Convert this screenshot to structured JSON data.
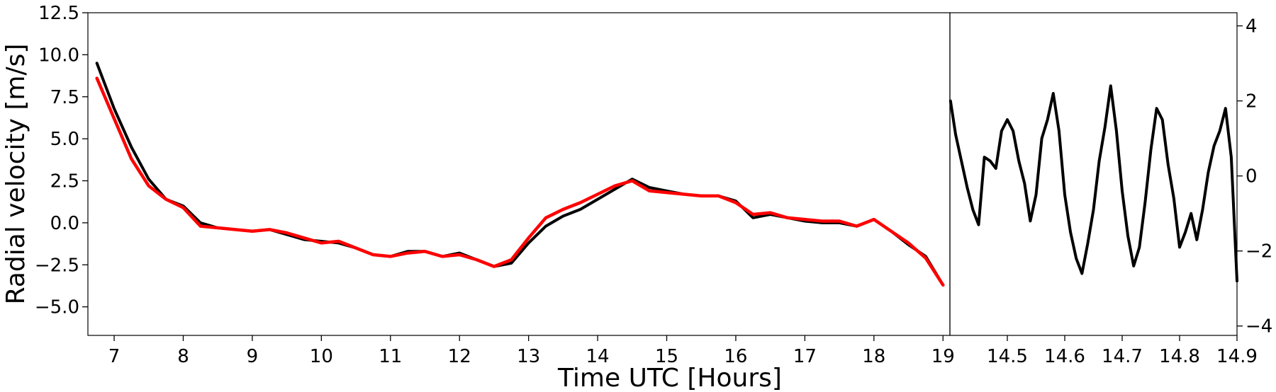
{
  "chart_data": [
    {
      "type": "line",
      "xlabel": "Time UTC [Hours]",
      "ylabel": "Radial velocity [m/s]",
      "xlim": [
        6.62,
        19.1
      ],
      "ylim": [
        -6.7,
        12.5
      ],
      "xticks": [
        "7",
        "8",
        "9",
        "10",
        "11",
        "12",
        "13",
        "14",
        "15",
        "16",
        "17",
        "18",
        "19"
      ],
      "yticks": [
        "−5.0",
        "−2.5",
        "0.0",
        "2.5",
        "5.0",
        "7.5",
        "10.0",
        "12.5"
      ],
      "line_color": "#000000",
      "smooth_color": "#ff0000",
      "series": [
        {
          "x": [
            6.75,
            7.0,
            7.25,
            7.5,
            7.75,
            8.0,
            8.25,
            8.5,
            8.75,
            9.0,
            9.25,
            9.5,
            9.75,
            10.0,
            10.25,
            10.5,
            10.75,
            11.0,
            11.25,
            11.5,
            11.75,
            12.0,
            12.25,
            12.5,
            12.75,
            13.0,
            13.25,
            13.5,
            13.75,
            14.0,
            14.25,
            14.5,
            14.75,
            15.0,
            15.25,
            15.5,
            15.75,
            16.0,
            16.25,
            16.5,
            16.75,
            17.0,
            17.25,
            17.5,
            17.75,
            18.0,
            18.25,
            18.5,
            18.75,
            19.0
          ],
          "y": [
            9.5,
            6.8,
            4.5,
            2.6,
            1.4,
            1.0,
            0.0,
            -0.3,
            -0.4,
            -0.5,
            -0.4,
            -0.7,
            -1.0,
            -1.1,
            -1.2,
            -1.5,
            -1.9,
            -2.0,
            -1.7,
            -1.7,
            -2.0,
            -1.8,
            -2.2,
            -2.6,
            -2.4,
            -1.2,
            -0.2,
            0.4,
            0.8,
            1.4,
            2.0,
            2.6,
            2.1,
            1.9,
            1.7,
            1.6,
            1.6,
            1.3,
            0.3,
            0.5,
            0.3,
            0.1,
            0.0,
            0.0,
            -0.2,
            0.2,
            -0.5,
            -1.3,
            -2.0,
            -3.7
          ]
        },
        {
          "x": [
            6.75,
            7.0,
            7.25,
            7.5,
            7.75,
            8.0,
            8.25,
            8.5,
            8.75,
            9.0,
            9.25,
            9.5,
            9.75,
            10.0,
            10.25,
            10.5,
            10.75,
            11.0,
            11.25,
            11.5,
            11.75,
            12.0,
            12.25,
            12.5,
            12.75,
            13.0,
            13.25,
            13.5,
            13.75,
            14.0,
            14.25,
            14.5,
            14.75,
            15.0,
            15.25,
            15.5,
            15.75,
            16.0,
            16.25,
            16.5,
            16.75,
            17.0,
            17.25,
            17.5,
            17.75,
            18.0,
            18.25,
            18.5,
            18.75,
            19.0
          ],
          "y": [
            8.6,
            6.2,
            3.8,
            2.2,
            1.4,
            0.9,
            -0.2,
            -0.3,
            -0.4,
            -0.5,
            -0.4,
            -0.6,
            -0.9,
            -1.2,
            -1.1,
            -1.5,
            -1.9,
            -2.0,
            -1.8,
            -1.7,
            -2.0,
            -1.9,
            -2.2,
            -2.6,
            -2.2,
            -0.9,
            0.3,
            0.8,
            1.2,
            1.7,
            2.2,
            2.5,
            1.9,
            1.8,
            1.7,
            1.6,
            1.6,
            1.2,
            0.5,
            0.6,
            0.3,
            0.2,
            0.1,
            0.1,
            -0.2,
            0.2,
            -0.5,
            -1.2,
            -2.1,
            -3.7
          ]
        }
      ]
    },
    {
      "type": "line",
      "xlim": [
        14.4,
        14.9
      ],
      "ylim": [
        -4.25,
        4.35
      ],
      "xticks": [
        "14.5",
        "14.6",
        "14.7",
        "14.8",
        "14.9"
      ],
      "yticks": [
        "−4",
        "−2",
        "0",
        "2",
        "4"
      ],
      "line_color": "#000000",
      "series": [
        {
          "x": [
            14.401,
            14.41,
            14.42,
            14.43,
            14.44,
            14.45,
            14.46,
            14.47,
            14.48,
            14.49,
            14.5,
            14.51,
            14.52,
            14.53,
            14.54,
            14.55,
            14.56,
            14.57,
            14.58,
            14.59,
            14.6,
            14.61,
            14.62,
            14.63,
            14.64,
            14.65,
            14.66,
            14.67,
            14.68,
            14.69,
            14.7,
            14.71,
            14.72,
            14.73,
            14.74,
            14.75,
            14.76,
            14.77,
            14.78,
            14.79,
            14.8,
            14.81,
            14.82,
            14.83,
            14.84,
            14.85,
            14.86,
            14.87,
            14.88,
            14.89,
            14.9
          ],
          "y": [
            2.0,
            1.1,
            0.4,
            -0.3,
            -0.9,
            -1.3,
            0.5,
            0.4,
            0.2,
            1.2,
            1.5,
            1.2,
            0.4,
            -0.2,
            -1.2,
            -0.5,
            1.0,
            1.5,
            2.2,
            1.2,
            -0.5,
            -1.5,
            -2.2,
            -2.6,
            -1.8,
            -0.9,
            0.4,
            1.3,
            2.4,
            1.2,
            -0.4,
            -1.6,
            -2.4,
            -1.9,
            -0.7,
            0.7,
            1.8,
            1.5,
            0.3,
            -0.6,
            -1.9,
            -1.5,
            -1.0,
            -1.7,
            -0.9,
            0.1,
            0.8,
            1.2,
            1.8,
            0.5,
            -2.8
          ]
        }
      ]
    }
  ]
}
